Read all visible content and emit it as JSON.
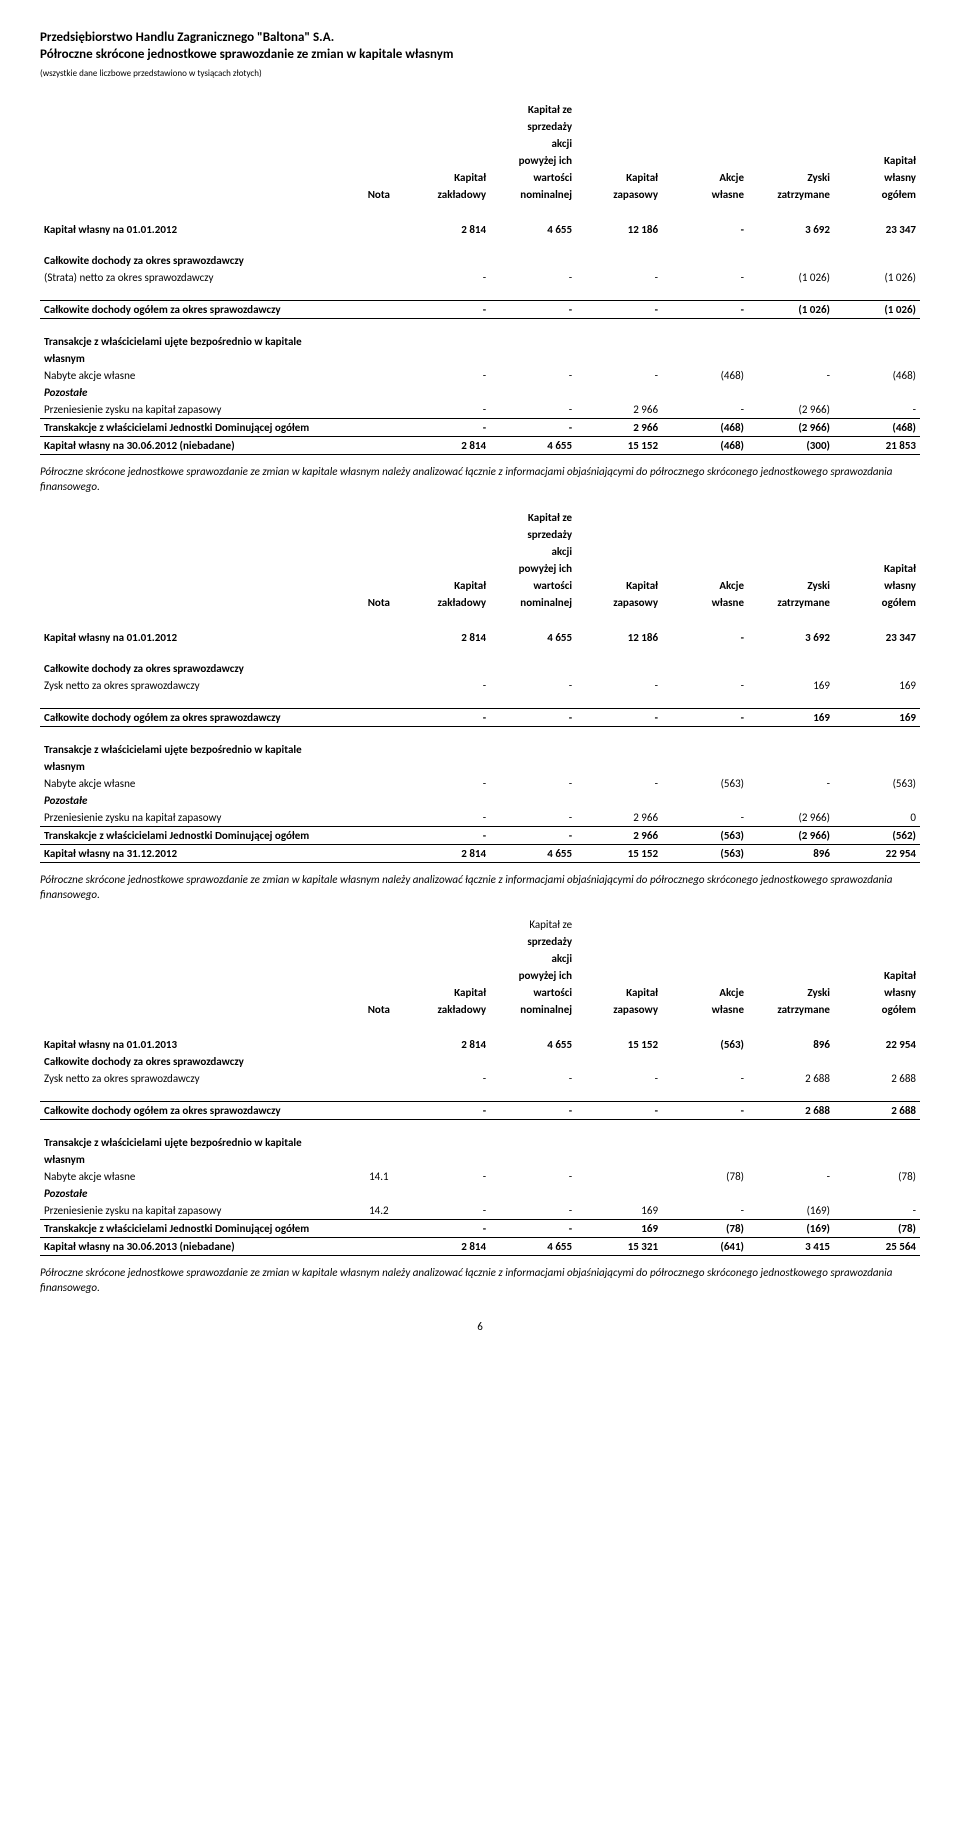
{
  "company": "Przedsiębiorstwo Handlu Zagranicznego \"Baltona\" S.A.",
  "title": "Półroczne skrócone jednostkowe sprawozdanie ze zmian w kapitale własnym",
  "unitsNote": "(wszystkie dane liczbowe przedstawiono w tysiącach złotych)",
  "columns": {
    "nota": "Nota",
    "zakladowy1": "Kapitał",
    "zakladowy2": "zakładowy",
    "sprzedaz1": "Kapitał ze",
    "sprzedaz2": "sprzedaży",
    "sprzedaz3": "akcji",
    "sprzedaz4": "powyżej ich",
    "sprzedaz5": "wartości",
    "sprzedaz6": "nominalnej",
    "zapasowy1": "Kapitał",
    "zapasowy2": "zapasowy",
    "akcje1": "Akcje",
    "akcje2": "własne",
    "zyski1": "Zyski",
    "zyski2": "zatrzymane",
    "ogolem1": "Kapitał",
    "ogolem2": "własny",
    "ogolem3": "ogółem"
  },
  "labels": {
    "open2012": "Kapitał własny na 01.01.2012",
    "totalIncomeHeader": "Całkowite dochody za okres sprawozdawczy",
    "strataNetto": "(Strata) netto za okres sprawozdawczy",
    "zyskNetto": "Zysk netto za okres sprawozdawczy",
    "totalIncomeSum": "Całkowite dochody ogółem za okres sprawozdawczy",
    "txHeader1": "Transakcje z właścicielami ujęte bezpośrednio w kapitale",
    "txHeader2": "własnym",
    "nabyte": "Nabyte akcje własne",
    "pozostale": "Pozostałe",
    "przeniesienie": "Przeniesienie zysku na kapitał zapasowy",
    "transakcjeOgolem": "Transkakcje z właścicielami Jednostki Dominującej ogółem",
    "close0612niebadane": "Kapitał własny na 30.06.2012 (niebadane)",
    "close1212": "Kapitał własny na 31.12.2012",
    "open2013": "Kapitał własny na 01.01.2013",
    "close0613niebadane": "Kapitał własny na 30.06.2013 (niebadane)",
    "note141": "14.1",
    "note142": "14.2"
  },
  "note": "Półroczne skrócone jednostkowe sprawozdanie ze zmian w kapitale własnym należy analizować łącznie z informacjami objaśniającymi do półrocznego skróconego jednostkowego sprawozdania finansowego.",
  "noteHeadTrunc": "Kapitał ze",
  "t1": {
    "open": [
      "2 814",
      "4 655",
      "12 186",
      "-",
      "3 692",
      "23 347"
    ],
    "strata": [
      "-",
      "-",
      "-",
      "-",
      "(1 026)",
      "(1 026)"
    ],
    "sumInc": [
      "-",
      "-",
      "-",
      "-",
      "(1 026)",
      "(1 026)"
    ],
    "nabyte": [
      "-",
      "-",
      "-",
      "(468)",
      "-",
      "(468)"
    ],
    "przen": [
      "-",
      "-",
      "2 966",
      "-",
      "(2 966)",
      "-"
    ],
    "txSum": [
      "-",
      "-",
      "2 966",
      "(468)",
      "(2 966)",
      "(468)"
    ],
    "close": [
      "2 814",
      "4 655",
      "15 152",
      "(468)",
      "(300)",
      "21 853"
    ]
  },
  "t2": {
    "open": [
      "2 814",
      "4 655",
      "12 186",
      "-",
      "3 692",
      "23 347"
    ],
    "zysk": [
      "-",
      "-",
      "-",
      "-",
      "169",
      "169"
    ],
    "sumInc": [
      "-",
      "-",
      "-",
      "-",
      "169",
      "169"
    ],
    "nabyte": [
      "-",
      "-",
      "-",
      "(563)",
      "-",
      "(563)"
    ],
    "przen": [
      "-",
      "-",
      "2 966",
      "-",
      "(2 966)",
      "0"
    ],
    "txSum": [
      "-",
      "-",
      "2 966",
      "(563)",
      "(2 966)",
      "(562)"
    ],
    "close": [
      "2 814",
      "4 655",
      "15 152",
      "(563)",
      "896",
      "22 954"
    ]
  },
  "t3": {
    "open": [
      "2 814",
      "4 655",
      "15 152",
      "(563)",
      "896",
      "22 954"
    ],
    "zysk": [
      "-",
      "-",
      "-",
      "-",
      "2 688",
      "2 688"
    ],
    "sumInc": [
      "-",
      "-",
      "-",
      "-",
      "2 688",
      "2 688"
    ],
    "nabyte": [
      "-",
      "-",
      "",
      "(78)",
      "-",
      "(78)"
    ],
    "przen": [
      "-",
      "-",
      "169",
      "-",
      "(169)",
      "-"
    ],
    "txSum": [
      "-",
      "-",
      "169",
      "(78)",
      "(169)",
      "(78)"
    ],
    "close": [
      "2 814",
      "4 655",
      "15 321",
      "(641)",
      "3 415",
      "25 564"
    ]
  },
  "pageNumber": "6"
}
